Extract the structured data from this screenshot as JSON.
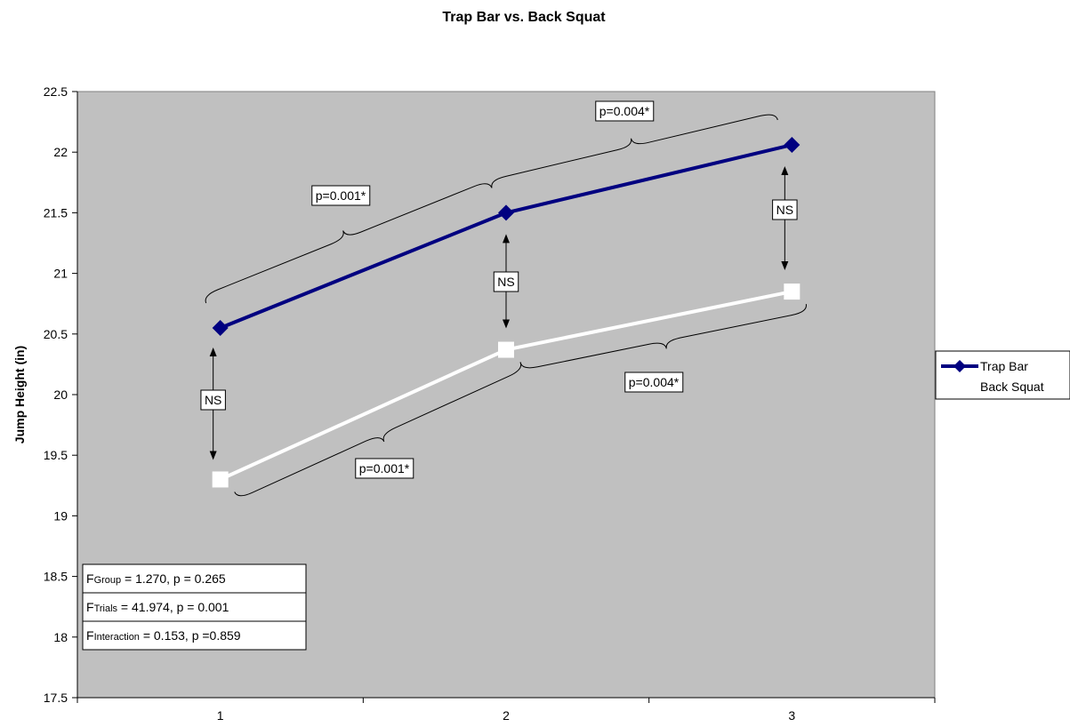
{
  "chart_data": {
    "type": "line",
    "title": "Trap Bar vs. Back Squat",
    "xlabel": "",
    "ylabel": "Jump Height (in)",
    "categories": [
      "1",
      "2",
      "3"
    ],
    "ylim": [
      17.5,
      22.5
    ],
    "yticks": [
      "17.5",
      "18",
      "18.5",
      "19",
      "19.5",
      "20",
      "20.5",
      "21",
      "21.5",
      "22",
      "22.5"
    ],
    "grid": false,
    "legend_position": "right",
    "plot_background": "#C0C0C0",
    "series": [
      {
        "name": "Trap Bar",
        "values": [
          20.55,
          21.5,
          22.06
        ],
        "color": "#000080",
        "marker": "diamond"
      },
      {
        "name": "Back Squat",
        "values": [
          19.3,
          20.37,
          20.85
        ],
        "color": "#FFFFFF",
        "marker": "square"
      }
    ],
    "annotations": {
      "trap_brace_1_2": "p=0.001*",
      "trap_brace_2_3": "p=0.004*",
      "back_brace_1_2": "p=0.001*",
      "back_brace_2_3": "p=0.004*",
      "ns_trial_1": "NS",
      "ns_trial_2": "NS",
      "ns_trial_3": "NS"
    },
    "stats": [
      {
        "main": "F",
        "sub": "Group",
        "rest": " = 1.270, p = 0.265"
      },
      {
        "main": "F",
        "sub": "Trials",
        "rest": " = 41.974, p = 0.001"
      },
      {
        "main": "F",
        "sub": "Interaction",
        "rest": " = 0.153, p =0.859"
      }
    ]
  }
}
